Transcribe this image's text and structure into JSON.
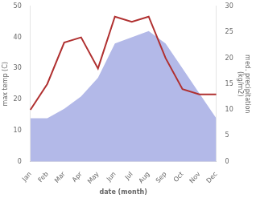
{
  "chart_data": {
    "type": "line",
    "xlabel": "date (month)",
    "ylabel": "max temp (C)",
    "y2label": "med. precipitation\n(kg/m2)",
    "categories": [
      "Jan",
      "Feb",
      "Mar",
      "Apr",
      "May",
      "Jun",
      "Jul",
      "Aug",
      "Sep",
      "Oct",
      "Nov",
      "Dec"
    ],
    "series": [
      {
        "type": "area",
        "color": "#b3b9e8",
        "values": [
          14,
          14,
          17,
          21,
          27,
          38,
          40,
          42,
          38,
          30,
          22,
          14
        ]
      },
      {
        "type": "line",
        "color": "#b03030",
        "axis": "y2",
        "values": [
          10,
          15,
          23,
          24,
          18,
          28,
          27,
          28,
          20,
          14,
          13,
          13
        ]
      }
    ],
    "ylim": [
      0,
      50
    ],
    "yticks": [
      0,
      10,
      20,
      30,
      40,
      50
    ],
    "y2lim": [
      0,
      30
    ],
    "y2ticks": [
      0,
      5,
      10,
      15,
      20,
      25,
      30
    ],
    "grid": false
  }
}
